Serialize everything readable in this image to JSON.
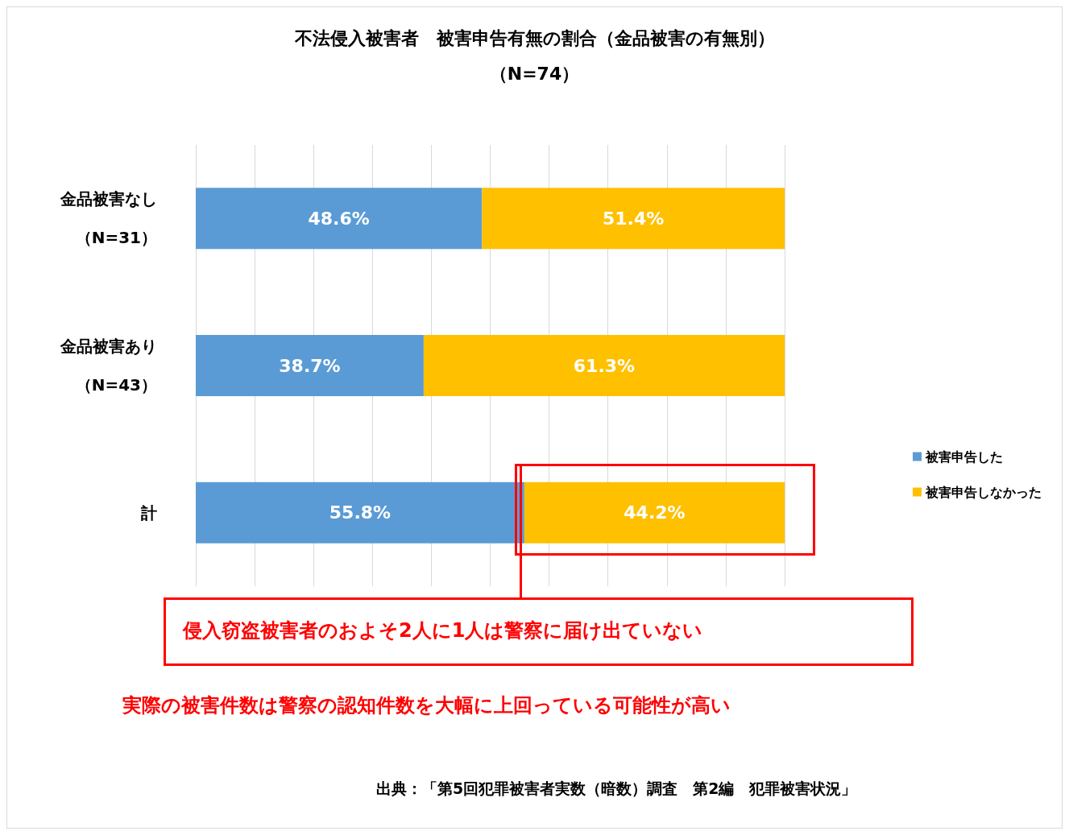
{
  "chart_data": {
    "type": "bar",
    "orientation": "horizontal",
    "stacked": true,
    "title": "不法侵入被害者　被害申告有無の割合（金品被害の有無別）",
    "subtitle": "（N=74）",
    "categories": [
      "金品被害なし（N=31）",
      "金品被害あり（N=43）",
      "計"
    ],
    "series": [
      {
        "name": "被害申告した",
        "color": "#5b9bd5",
        "values": [
          48.6,
          38.7,
          55.8
        ],
        "value_labels": [
          "48.6%",
          "38.7%",
          "55.8%"
        ]
      },
      {
        "name": "被害申告しなかった",
        "color": "#ffc000",
        "values": [
          51.4,
          61.3,
          44.2
        ],
        "value_labels": [
          "51.4%",
          "61.3%",
          "44.2%"
        ]
      }
    ],
    "xlim": [
      0,
      100
    ],
    "xticks": [
      {
        "value": 0,
        "label": null
      },
      {
        "value": 10,
        "label": null
      },
      {
        "value": 20,
        "label": null
      },
      {
        "value": 30,
        "label": null
      },
      {
        "value": 40,
        "label": null
      },
      {
        "value": 50,
        "label": null
      },
      {
        "value": 60,
        "label": null
      },
      {
        "value": 70,
        "label": null
      },
      {
        "value": 80,
        "label": null
      },
      {
        "value": 90,
        "label": null
      },
      {
        "value": 100,
        "label": null
      }
    ],
    "tick_labels": "y",
    "grid": "x",
    "legend": "right",
    "annotations": [
      "侵入窃盗被害者のおよそ2人に1人は警察に届け出ていない",
      "実際の被害件数は警察の認知件数を大幅に上回っている可能性が高い",
      "出典：「第5回犯罪被害者実数（暗数）調査　第2編　犯罪被害状況」"
    ]
  }
}
